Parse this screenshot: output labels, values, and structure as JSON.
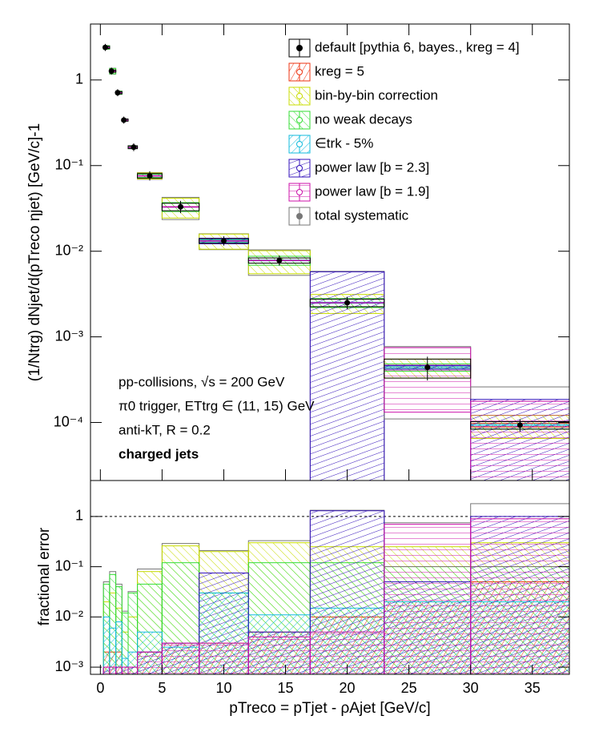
{
  "chart_data": [
    {
      "type": "errorbox",
      "name": "default [pythia 6, bayes., kreg = 4]",
      "color": "#000000",
      "bins": [
        0.25,
        0.75,
        1.25,
        1.75,
        2.25,
        3,
        5,
        8,
        12,
        17,
        23,
        30,
        38
      ],
      "x": [
        0.4,
        0.9,
        1.4,
        1.9,
        2.7,
        4,
        6.5,
        10,
        14.5,
        20,
        26.5,
        34
      ],
      "values": [
        2.4,
        1.27,
        0.71,
        0.34,
        0.164,
        0.076,
        0.033,
        0.0132,
        0.0078,
        0.0025,
        0.00044,
        9.3e-05
      ],
      "errors": [
        0.03,
        0.03,
        0.03,
        0.03,
        0.04,
        0.06,
        0.1,
        0.06,
        0.07,
        0.1,
        0.25,
        0.1
      ],
      "ylim": [
        2.1e-05,
        4.5
      ],
      "log": true,
      "yticks": [
        {
          "value": 0.0001,
          "label": "10⁻⁴"
        },
        {
          "value": 0.001,
          "label": "10⁻³"
        },
        {
          "value": 0.01,
          "label": "10⁻²"
        },
        {
          "value": 0.1,
          "label": "10⁻¹"
        },
        1
      ],
      "ylabel": "(1/Ntrg) dNjet/d(pTreco ηjet) [GeV/c]-1",
      "annotations": [
        "pp-collisions, √s = 200 GeV",
        "π0 trigger, ETtrg ∈ (11, 15) GeV",
        "anti-kT, R = 0.2",
        "charged jets"
      ]
    },
    {
      "type": "step",
      "series": [
        {
          "name": "kreg = 5",
          "color": "#ee3311",
          "values": [
            0.002,
            0.002,
            0.002,
            0.001,
            0.001,
            0.002,
            0.003,
            0.003,
            0.005,
            0.01,
            0.02,
            0.05
          ]
        },
        {
          "name": "bin-by-bin correction",
          "color": "#c8dc00",
          "values": [
            0.02,
            0.03,
            0.015,
            0.005,
            0.01,
            0.08,
            0.26,
            0.2,
            0.3,
            0.25,
            0.25,
            0.3
          ]
        },
        {
          "name": "no weak decays",
          "color": "#33dd33",
          "values": [
            0.045,
            0.07,
            0.04,
            0.012,
            0.03,
            0.045,
            0.12,
            0.03,
            0.12,
            0.12,
            0.1,
            0.1
          ]
        },
        {
          "name": "∈trk - 5%",
          "color": "#11bbdd",
          "values": [
            0.01,
            0.006,
            0.008,
            0.0015,
            0.002,
            0.005,
            0.0025,
            0.03,
            0.011,
            0.015,
            0.02,
            0.02
          ]
        },
        {
          "name": "power law [b = 2.3]",
          "color": "#3311bb",
          "values": [
            0.001,
            0.001,
            0.001,
            0.001,
            0.001,
            0.002,
            0.003,
            0.075,
            0.005,
            1.3,
            0.05,
            1.0
          ]
        },
        {
          "name": "power law [b = 1.9]",
          "color": "#cc11aa",
          "values": [
            0.001,
            0.001,
            0.001,
            0.001,
            0.001,
            0.002,
            0.003,
            0.003,
            0.004,
            0.005,
            0.7,
            0.9
          ]
        },
        {
          "name": "total systematic",
          "color": "#777777",
          "values": [
            0.05,
            0.08,
            0.045,
            0.013,
            0.032,
            0.09,
            0.29,
            0.21,
            0.33,
            1.33,
            0.75,
            1.8
          ]
        }
      ],
      "ylim": [
        0.00072,
        5.2
      ],
      "log": true,
      "yticks": [
        {
          "value": 0.001,
          "label": "10⁻³"
        },
        {
          "value": 0.01,
          "label": "10⁻²"
        },
        {
          "value": 0.1,
          "label": "10⁻¹"
        },
        1
      ],
      "reference_line": 1,
      "xlim": [
        -0.8,
        38
      ],
      "xticks": [
        0,
        5,
        10,
        15,
        20,
        25,
        30,
        35
      ],
      "ylabel": "fractional error",
      "xlabel": "pTreco = pTjet - ρAjet [GeV/c]"
    }
  ]
}
